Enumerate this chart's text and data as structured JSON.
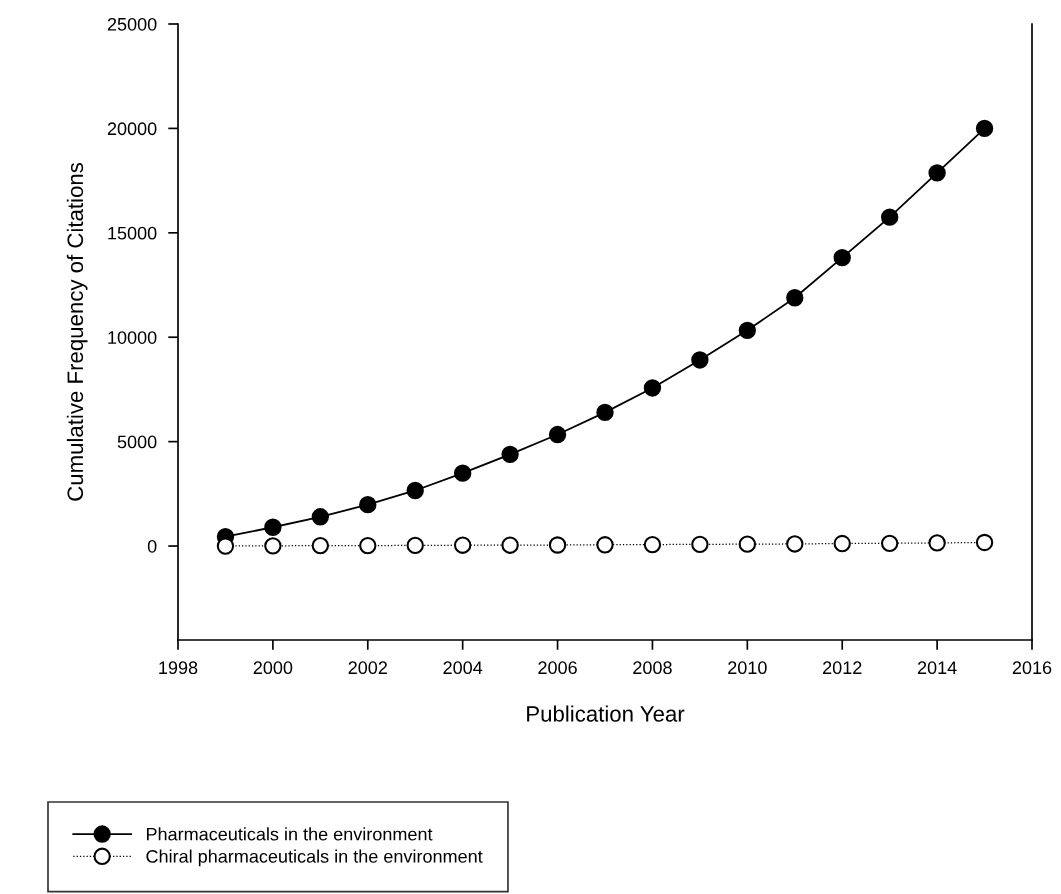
{
  "chart_data": {
    "type": "line",
    "xlabel": "Publication Year",
    "ylabel": "Cumulative Frequency of Citations",
    "x": [
      1999,
      2000,
      2001,
      2002,
      2003,
      2004,
      2005,
      2006,
      2007,
      2008,
      2009,
      2010,
      2011,
      2012,
      2013,
      2014,
      2015
    ],
    "series": [
      {
        "name": "Pharmaceuticals in the environment",
        "color": "#000000",
        "marker": "circle",
        "line_style": "solid",
        "values": [
          450,
          900,
          1400,
          1980,
          2660,
          3490,
          4390,
          5340,
          6400,
          7570,
          8910,
          10330,
          11890,
          13810,
          15750,
          17870,
          20000
        ]
      },
      {
        "name": "Chiral pharmaceuticals in the environment",
        "color": "#000000",
        "marker": "circle",
        "line_style": "dotted",
        "values": [
          0,
          10,
          20,
          20,
          30,
          40,
          40,
          50,
          60,
          70,
          80,
          90,
          100,
          120,
          130,
          150,
          170
        ]
      }
    ],
    "xlim": [
      1998,
      2016
    ],
    "xticks": [
      1998,
      2000,
      2002,
      2004,
      2006,
      2008,
      2010,
      2012,
      2014,
      2016
    ],
    "ylim": [
      -4500,
      25000
    ],
    "yticks": [
      0,
      5000,
      10000,
      15000,
      20000,
      25000
    ],
    "grid": false,
    "legend": "bottom left"
  }
}
